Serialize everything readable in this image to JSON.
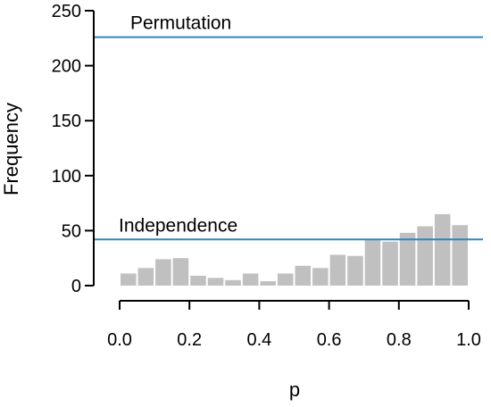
{
  "chart_data": {
    "type": "bar",
    "xlabel": "p",
    "ylabel": "Frequency",
    "xlim": [
      0,
      1
    ],
    "ylim": [
      0,
      250
    ],
    "xticks": [
      0.0,
      0.2,
      0.4,
      0.6,
      0.8,
      1.0
    ],
    "xtick_labels": [
      "0.0",
      "0.2",
      "0.4",
      "0.6",
      "0.8",
      "1.0"
    ],
    "yticks": [
      0,
      50,
      100,
      150,
      200,
      250
    ],
    "ytick_labels": [
      "0",
      "50",
      "100",
      "150",
      "200",
      "250"
    ],
    "bin_width": 0.05,
    "bin_starts": [
      0.0,
      0.05,
      0.1,
      0.15,
      0.2,
      0.25,
      0.3,
      0.35,
      0.4,
      0.45,
      0.5,
      0.55,
      0.6,
      0.65,
      0.7,
      0.75,
      0.8,
      0.85,
      0.9,
      0.95
    ],
    "values": [
      11,
      16,
      24,
      25,
      9,
      7,
      5,
      11,
      4,
      11,
      18,
      16,
      28,
      27,
      42,
      40,
      48,
      54,
      65,
      55
    ],
    "bar_color": "#c0c0c0",
    "reference_lines": [
      {
        "label": "Permutation",
        "value": 226,
        "color": "#2e86c1"
      },
      {
        "label": "Independence",
        "value": 42,
        "color": "#2e86c1"
      }
    ],
    "grid": false,
    "legend": "none"
  }
}
